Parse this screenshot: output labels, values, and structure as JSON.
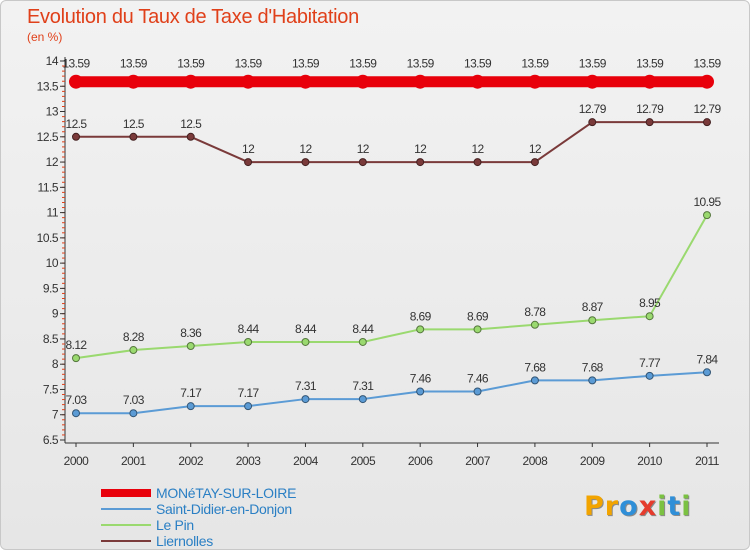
{
  "title": "Evolution du Taux de Taxe d'Habitation",
  "subtitle": "(en %)",
  "logo": {
    "letters": [
      "P",
      "r",
      "o",
      "x",
      "i",
      "t",
      "i"
    ],
    "colors": [
      "#f2a400",
      "#f2a400",
      "#2f8fd8",
      "#e53b2c",
      "#7bc142",
      "#2f8fd8",
      "#7bc142"
    ]
  },
  "chart_data": {
    "type": "line",
    "x": [
      "2000",
      "2001",
      "2002",
      "2003",
      "2004",
      "2005",
      "2006",
      "2007",
      "2008",
      "2009",
      "2010",
      "2011"
    ],
    "y_ticks": [
      "6.5",
      "7",
      "7.5",
      "8",
      "8.5",
      "9",
      "9.5",
      "10",
      "10.5",
      "11",
      "11.5",
      "12",
      "12.5",
      "13",
      "13.5",
      "14"
    ],
    "ylim": [
      6.5,
      14
    ],
    "grid": false,
    "legend_position": "bottom-left",
    "series": [
      {
        "name": "MONéTAY-SUR-LOIRE",
        "color": "#e8000b",
        "values": [
          13.59,
          13.59,
          13.59,
          13.59,
          13.59,
          13.59,
          13.59,
          13.59,
          13.59,
          13.59,
          13.59,
          13.59
        ],
        "labels": [
          "13.59",
          "13.59",
          "13.59",
          "13.59",
          "13.59",
          "13.59",
          "13.59",
          "13.59",
          "13.59",
          "13.59",
          "13.59",
          "13.59"
        ]
      },
      {
        "name": "Saint-Didier-en-Donjon",
        "color": "#5b9bd5",
        "values": [
          7.03,
          7.03,
          7.17,
          7.17,
          7.31,
          7.31,
          7.46,
          7.46,
          7.68,
          7.68,
          7.77,
          7.84
        ],
        "labels": [
          "7.03",
          "7.03",
          "7.17",
          "7.17",
          "7.31",
          "7.31",
          "7.46",
          "7.46",
          "7.68",
          "7.68",
          "7.77",
          "7.84"
        ]
      },
      {
        "name": "Le Pin",
        "color": "#9ad96f",
        "values": [
          8.12,
          8.28,
          8.36,
          8.44,
          8.44,
          8.44,
          8.69,
          8.69,
          8.78,
          8.87,
          8.95,
          10.95
        ],
        "labels": [
          "8.12",
          "8.28",
          "8.36",
          "8.44",
          "8.44",
          "8.44",
          "8.69",
          "8.69",
          "8.78",
          "8.87",
          "8.95",
          "10.95"
        ]
      },
      {
        "name": "Liernolles",
        "color": "#7a3a3a",
        "values": [
          12.5,
          12.5,
          12.5,
          12,
          12,
          12,
          12,
          12,
          12,
          12.79,
          12.79,
          12.79
        ],
        "labels": [
          "12.5",
          "12.5",
          "12.5",
          "12",
          "12",
          "12",
          "12",
          "12",
          "12",
          "12.79",
          "12.79",
          "12.79"
        ]
      }
    ]
  }
}
